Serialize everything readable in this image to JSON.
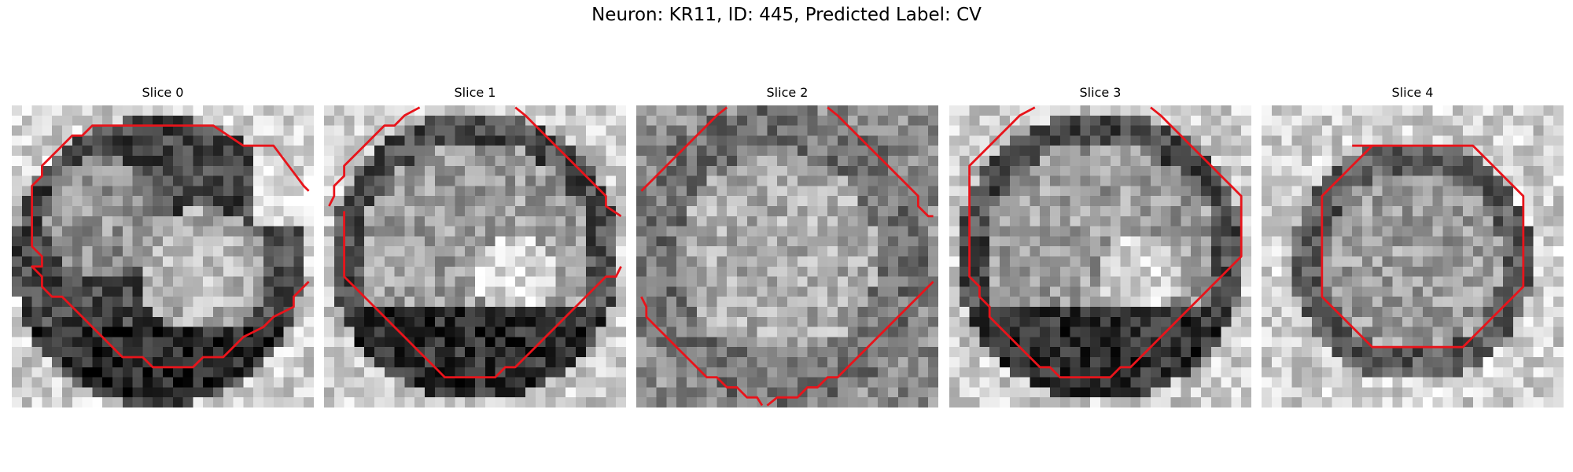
{
  "figure": {
    "title": "Neuron: KR11, ID: 445, Predicted Label: CV",
    "contour_color": "#e8141b"
  },
  "panels": [
    {
      "title": "Slice 0",
      "pattern": "two-lobes",
      "contour": "octagon-upper-left"
    },
    {
      "title": "Slice 1",
      "pattern": "dark-ring-bright-center",
      "contour": "octagon-large-offset"
    },
    {
      "title": "Slice 2",
      "pattern": "noisy-bright-center",
      "contour": "octagon-large-low"
    },
    {
      "title": "Slice 3",
      "pattern": "dark-ring-bright-center",
      "contour": "octagon-centered"
    },
    {
      "title": "Slice 4",
      "pattern": "light-bg-dark-ring",
      "contour": "octagon-small"
    }
  ]
}
